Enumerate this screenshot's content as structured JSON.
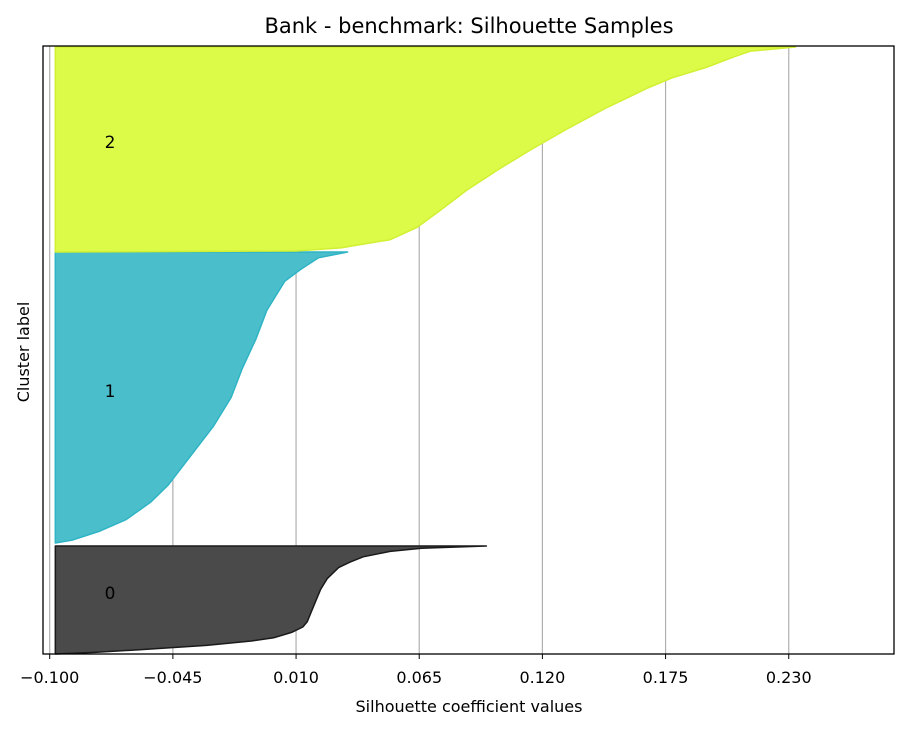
{
  "chart_data": {
    "type": "area",
    "title": "Bank - benchmark: Silhouette Samples",
    "xlabel": "Silhouette coefficient values",
    "ylabel": "Cluster label",
    "xlim": [
      -0.103,
      0.277
    ],
    "xticks": [
      -0.1,
      -0.045,
      0.01,
      0.065,
      0.12,
      0.175,
      0.23
    ],
    "xtick_labels": [
      "−0.100",
      "−0.045",
      "0.010",
      "0.065",
      "0.120",
      "0.175",
      "0.230"
    ],
    "grid": "vertical",
    "base": -0.0975,
    "clusters": [
      {
        "label": "0",
        "color": "#4a4a4a",
        "edge_color": "#1a1a1a",
        "samples_top_to_bottom": [
          [
            0.0,
            0.095
          ],
          [
            0.02,
            0.066
          ],
          [
            0.05,
            0.052
          ],
          [
            0.1,
            0.04
          ],
          [
            0.15,
            0.034
          ],
          [
            0.2,
            0.029
          ],
          [
            0.3,
            0.024
          ],
          [
            0.4,
            0.021
          ],
          [
            0.5,
            0.019
          ],
          [
            0.6,
            0.017
          ],
          [
            0.7,
            0.015
          ],
          [
            0.75,
            0.013
          ],
          [
            0.8,
            0.008
          ],
          [
            0.85,
            0.0
          ],
          [
            0.88,
            -0.01
          ],
          [
            0.92,
            -0.03
          ],
          [
            0.96,
            -0.06
          ],
          [
            0.985,
            -0.08
          ],
          [
            1.0,
            -0.0975
          ]
        ]
      },
      {
        "label": "1",
        "color": "#4bbecc",
        "edge_color": "#2eb4c4",
        "samples_top_to_bottom": [
          [
            0.0,
            0.033
          ],
          [
            0.02,
            0.02
          ],
          [
            0.06,
            0.012
          ],
          [
            0.1,
            0.005
          ],
          [
            0.15,
            0.001
          ],
          [
            0.2,
            -0.003
          ],
          [
            0.3,
            -0.008
          ],
          [
            0.4,
            -0.014
          ],
          [
            0.5,
            -0.019
          ],
          [
            0.6,
            -0.027
          ],
          [
            0.7,
            -0.037
          ],
          [
            0.8,
            -0.047
          ],
          [
            0.86,
            -0.055
          ],
          [
            0.92,
            -0.066
          ],
          [
            0.96,
            -0.078
          ],
          [
            0.99,
            -0.09
          ],
          [
            1.0,
            -0.0975
          ]
        ]
      },
      {
        "label": "2",
        "color": "#dcfa48",
        "edge_color": "#d2f032",
        "samples_top_to_bottom": [
          [
            0.0,
            0.233
          ],
          [
            0.02,
            0.213
          ],
          [
            0.05,
            0.205
          ],
          [
            0.1,
            0.193
          ],
          [
            0.15,
            0.178
          ],
          [
            0.2,
            0.167
          ],
          [
            0.3,
            0.148
          ],
          [
            0.4,
            0.131
          ],
          [
            0.5,
            0.115
          ],
          [
            0.6,
            0.1
          ],
          [
            0.7,
            0.086
          ],
          [
            0.8,
            0.074
          ],
          [
            0.88,
            0.064
          ],
          [
            0.94,
            0.052
          ],
          [
            0.98,
            0.03
          ],
          [
            0.995,
            0.01
          ],
          [
            1.0,
            -0.0975
          ]
        ]
      }
    ]
  }
}
